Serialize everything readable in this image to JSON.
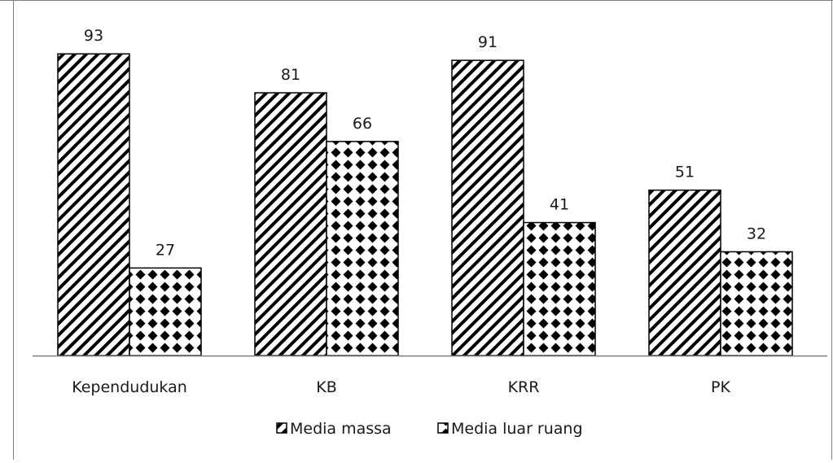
{
  "chart_data": {
    "type": "bar",
    "title": "",
    "xlabel": "",
    "ylabel": "",
    "categories": [
      "Kependudukan",
      "KB",
      "KRR",
      "PK"
    ],
    "series": [
      {
        "name": "Media massa",
        "values": [
          93,
          81,
          91,
          51
        ],
        "pattern": "diagonal-stripes"
      },
      {
        "name": "Media luar ruang",
        "values": [
          27,
          66,
          41,
          32
        ],
        "pattern": "dotted-checker"
      }
    ],
    "ylim": [
      0,
      100
    ],
    "grid": false,
    "legend_position": "bottom",
    "data_labels": true
  },
  "colors": {
    "bar_stroke": "#000000",
    "pattern_ink": "#000000",
    "background": "#ffffff"
  }
}
